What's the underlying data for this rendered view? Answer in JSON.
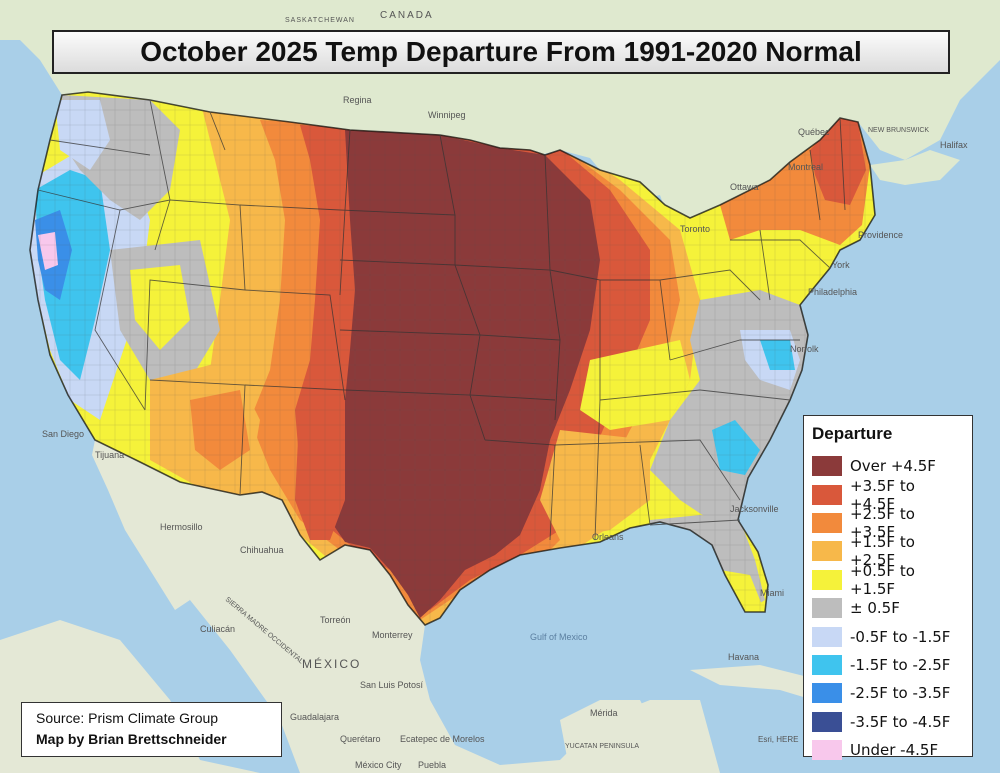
{
  "title": "October 2025 Temp Departure From 1991-2020 Normal",
  "legend": {
    "title": "Departure",
    "items": [
      {
        "label": "Over +4.5F",
        "color": "#8b3a3a"
      },
      {
        "label": "+3.5F to +4.5F",
        "color": "#d9583b"
      },
      {
        "label": "+2.5F to +3.5F",
        "color": "#f28a3c"
      },
      {
        "label": "+1.5F to +2.5F",
        "color": "#f7b84a"
      },
      {
        "label": "+0.5F to +1.5F",
        "color": "#f5f23a"
      },
      {
        "label": "± 0.5F",
        "color": "#bdbdbd"
      },
      {
        "label": "-0.5F to -1.5F",
        "color": "#c8d8f5"
      },
      {
        "label": "-1.5F to -2.5F",
        "color": "#3fc4ee"
      },
      {
        "label": "-2.5F to -3.5F",
        "color": "#3a8fe8"
      },
      {
        "label": "-3.5F to -4.5F",
        "color": "#3a4f95"
      },
      {
        "label": "Under -4.5F",
        "color": "#f8c8ec"
      }
    ]
  },
  "credits": {
    "source": "Source: Prism Climate Group",
    "author": "Map by Brian Brettschneider"
  },
  "basemap_labels": {
    "canada": "CANADA",
    "saskatchewan": "SASKATCHEWAN",
    "regina": "Regina",
    "winnipeg": "Winnipeg",
    "montreal": "Montreal",
    "ottawa": "Ottawa",
    "toronto": "Toronto",
    "quebec": "Québec",
    "halifax": "Halifax",
    "new_brunswick": "NEW BRUNSWICK",
    "providence": "Providence",
    "york": "York",
    "philadelphia": "Philadelphia",
    "norfolk": "Norfolk",
    "jacksonville": "Jacksonville",
    "orleans": "Orleans",
    "miami": "Miami",
    "san_diego": "San Diego",
    "tijuana": "Tijuana",
    "hermosillo": "Hermosillo",
    "chihuahua": "Chihuahua",
    "culiacan": "Culiacán",
    "torreon": "Torreón",
    "monterrey": "Monterrey",
    "mexico": "MÉXICO",
    "san_luis_potosi": "San Luis Potosí",
    "queretaro": "Querétaro",
    "ecatepec": "Ecatepec de Morelos",
    "guadalajara": "Guadalajara",
    "mexico_city": "México City",
    "puebla": "Puebla",
    "gulf_of_mexico": "Gulf of Mexico",
    "havana": "Havana",
    "merida": "Mérida",
    "yucatan": "YUCATAN PENINSULA",
    "sierra_madre": "SIERRA MADRE OCCIDENTAL",
    "esri": "Esri, HERE"
  }
}
